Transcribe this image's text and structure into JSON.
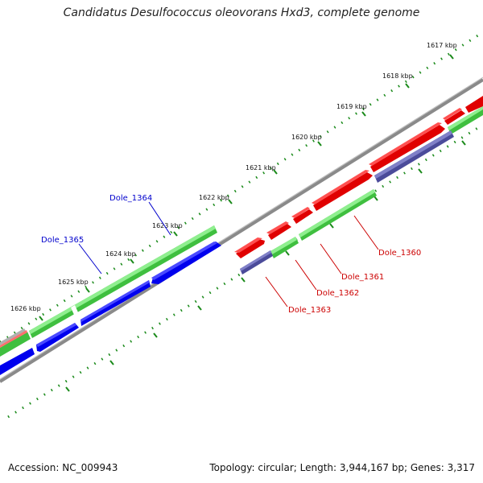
{
  "title": "Candidatus Desulfococcus oleovorans Hxd3, complete genome",
  "footer": {
    "accession": "Accession: NC_009943",
    "summary": "Topology: circular; Length: 3,944,167 bp; Genes: 3,317"
  },
  "colors": {
    "forward_cds": "#e00000",
    "forward_cds_top": "#ff5050",
    "reverse_cds": "#0000ee",
    "reverse_cds_top": "#4a4aff",
    "rna": "#3fbf3f",
    "rna_top": "#8fef8f",
    "other": "#4b4b9a",
    "other_top": "#8080c8",
    "backbone": "#7a7a7a",
    "ticks": "#1a8a1a",
    "label_forward": "#cc0000",
    "label_reverse": "#0000cc"
  },
  "kbp_ticks": [
    "1617 kbp",
    "1618 kbp",
    "1619 kbp",
    "1620 kbp",
    "1621 kbp",
    "1622 kbp",
    "1623 kbp",
    "1624 kbp",
    "1625 kbp",
    "1626 kbp"
  ],
  "gene_labels": [
    {
      "id": "dole-1364",
      "text": "Dole_1364",
      "strand": "reverse"
    },
    {
      "id": "dole-1365",
      "text": "Dole_1365",
      "strand": "reverse"
    },
    {
      "id": "dole-1360",
      "text": "Dole_1360",
      "strand": "forward"
    },
    {
      "id": "dole-1361",
      "text": "Dole_1361",
      "strand": "forward"
    },
    {
      "id": "dole-1362",
      "text": "Dole_1362",
      "strand": "forward"
    },
    {
      "id": "dole-1363",
      "text": "Dole_1363",
      "strand": "forward"
    }
  ]
}
